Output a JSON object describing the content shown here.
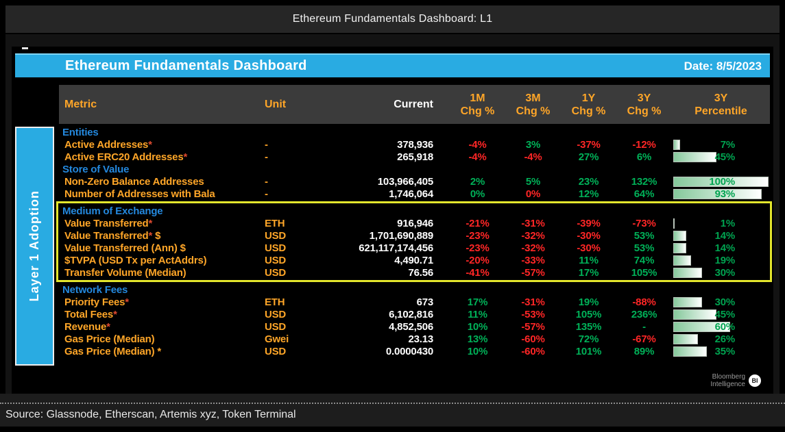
{
  "window_title": "Ethereum Fundamentals Dashboard: L1",
  "header": {
    "title": "Ethereum Fundamentals Dashboard",
    "date": "Date: 8/5/2023"
  },
  "sidebar": {
    "label": "Layer 1 Adoption"
  },
  "logo": {
    "line1": "Bloomberg",
    "line2": "Intelligence",
    "badge": "BI"
  },
  "footer": {
    "source": "Source: Glassnode, Etherscan, Artemis xyz, Token Terminal"
  },
  "colors": {
    "accent_blue": "#29abe2",
    "label_orange": "#ffa628",
    "section_blue": "#2488dd",
    "positive_green": "#00b158",
    "negative_red": "#ff2626",
    "percentile_green": "#00a350",
    "percentile_bar_gradient": [
      "#85c89b",
      "#ffffff"
    ],
    "highlight_yellow": "#e3e62c",
    "header_row_gray": "#3b3b3b"
  },
  "chart_data": {
    "type": "table",
    "title": "Ethereum Fundamentals Dashboard",
    "columns": [
      "Metric",
      "Unit",
      "Current",
      "1M Chg %",
      "3M Chg %",
      "1Y Chg %",
      "3Y Chg %",
      "3Y Percentile"
    ],
    "headers": {
      "metric": "Metric",
      "unit": "Unit",
      "current": "Current",
      "chg": [
        {
          "l1": "1M",
          "l2": "Chg %"
        },
        {
          "l1": "3M",
          "l2": "Chg %"
        },
        {
          "l1": "1Y",
          "l2": "Chg %"
        },
        {
          "l1": "3Y",
          "l2": "Chg %"
        }
      ],
      "pct": {
        "l1": "3Y",
        "l2": "Percentile"
      }
    },
    "sections": [
      {
        "name": "Entities",
        "highlight": false,
        "rows": [
          {
            "label": "Active Addresses",
            "star": "*",
            "label2": "",
            "unit": "-",
            "current": "378,936",
            "chg": [
              {
                "v": "-4%",
                "s": "n"
              },
              {
                "v": "3%",
                "s": "p"
              },
              {
                "v": "-37%",
                "s": "n"
              },
              {
                "v": "-12%",
                "s": "n"
              }
            ],
            "pct": 7,
            "pct_label": "7%"
          },
          {
            "label": "Active ERC20 Addresses",
            "star": "*",
            "label2": "",
            "unit": "-",
            "current": "265,918",
            "chg": [
              {
                "v": "-4%",
                "s": "n"
              },
              {
                "v": "-4%",
                "s": "n"
              },
              {
                "v": "27%",
                "s": "p"
              },
              {
                "v": "6%",
                "s": "p"
              }
            ],
            "pct": 45,
            "pct_label": "45%"
          }
        ]
      },
      {
        "name": "Store of Value",
        "highlight": false,
        "rows": [
          {
            "label": "Non-Zero Balance Addresses",
            "star": "",
            "label2": "",
            "unit": "-",
            "current": "103,966,405",
            "chg": [
              {
                "v": "2%",
                "s": "p"
              },
              {
                "v": "5%",
                "s": "p"
              },
              {
                "v": "23%",
                "s": "p"
              },
              {
                "v": "132%",
                "s": "p"
              }
            ],
            "pct": 100,
            "pct_label": "100%"
          },
          {
            "label": "Number of Addresses with Bala",
            "star": "",
            "label2": "",
            "unit": "-",
            "current": "1,746,064",
            "chg": [
              {
                "v": "0%",
                "s": "p"
              },
              {
                "v": "0%",
                "s": "n"
              },
              {
                "v": "12%",
                "s": "p"
              },
              {
                "v": "64%",
                "s": "p"
              }
            ],
            "pct": 93,
            "pct_label": "93%"
          }
        ]
      },
      {
        "name": "Medium of Exchange",
        "highlight": true,
        "rows": [
          {
            "label": "Value Transferred",
            "star": "*",
            "label2": "",
            "unit": "ETH",
            "current": "916,946",
            "chg": [
              {
                "v": "-21%",
                "s": "n"
              },
              {
                "v": "-31%",
                "s": "n"
              },
              {
                "v": "-39%",
                "s": "n"
              },
              {
                "v": "-73%",
                "s": "n"
              }
            ],
            "pct": 1,
            "pct_label": "1%"
          },
          {
            "label": "Value Transferred",
            "star": "*",
            "label2": " $",
            "unit": "USD",
            "current": "1,701,690,889",
            "chg": [
              {
                "v": "-23%",
                "s": "n"
              },
              {
                "v": "-32%",
                "s": "n"
              },
              {
                "v": "-30%",
                "s": "n"
              },
              {
                "v": "53%",
                "s": "p"
              }
            ],
            "pct": 14,
            "pct_label": "14%"
          },
          {
            "label": "Value Transferred (Ann) $",
            "star": "",
            "label2": "",
            "unit": "USD",
            "current": "621,117,174,456",
            "chg": [
              {
                "v": "-23%",
                "s": "n"
              },
              {
                "v": "-32%",
                "s": "n"
              },
              {
                "v": "-30%",
                "s": "n"
              },
              {
                "v": "53%",
                "s": "p"
              }
            ],
            "pct": 14,
            "pct_label": "14%"
          },
          {
            "label": "$TVPA (USD Tx per ActAddrs)",
            "star": "",
            "label2": "",
            "unit": "USD",
            "current": "4,490.71",
            "chg": [
              {
                "v": "-20%",
                "s": "n"
              },
              {
                "v": "-33%",
                "s": "n"
              },
              {
                "v": "11%",
                "s": "p"
              },
              {
                "v": "74%",
                "s": "p"
              }
            ],
            "pct": 19,
            "pct_label": "19%"
          },
          {
            "label": "Transfer Volume (Median)",
            "star": "",
            "label2": "",
            "unit": "USD",
            "current": "76.56",
            "chg": [
              {
                "v": "-41%",
                "s": "n"
              },
              {
                "v": "-57%",
                "s": "n"
              },
              {
                "v": "17%",
                "s": "p"
              },
              {
                "v": "105%",
                "s": "p"
              }
            ],
            "pct": 30,
            "pct_label": "30%"
          }
        ]
      },
      {
        "name": "Network Fees",
        "highlight": false,
        "rows": [
          {
            "label": "Priority Fees",
            "star": "*",
            "label2": "",
            "unit": "ETH",
            "current": "673",
            "chg": [
              {
                "v": "17%",
                "s": "p"
              },
              {
                "v": "-31%",
                "s": "n"
              },
              {
                "v": "19%",
                "s": "p"
              },
              {
                "v": "-88%",
                "s": "n"
              }
            ],
            "pct": 30,
            "pct_label": "30%"
          },
          {
            "label": "Total Fees",
            "star": "*",
            "label2": "",
            "unit": "USD",
            "current": "6,102,816",
            "chg": [
              {
                "v": "11%",
                "s": "p"
              },
              {
                "v": "-53%",
                "s": "n"
              },
              {
                "v": "105%",
                "s": "p"
              },
              {
                "v": "236%",
                "s": "p"
              }
            ],
            "pct": 45,
            "pct_label": "45%"
          },
          {
            "label": "Revenue",
            "star": "*",
            "label2": "",
            "unit": "USD",
            "current": "4,852,506",
            "chg": [
              {
                "v": "10%",
                "s": "p"
              },
              {
                "v": "-57%",
                "s": "n"
              },
              {
                "v": "135%",
                "s": "p"
              },
              {
                "v": "-",
                "s": "p"
              }
            ],
            "pct": 60,
            "pct_label": "60%"
          },
          {
            "label": "Gas Price (Median)",
            "star": "",
            "label2": "",
            "unit": "Gwei",
            "current": "23.13",
            "chg": [
              {
                "v": "13%",
                "s": "p"
              },
              {
                "v": "-60%",
                "s": "n"
              },
              {
                "v": "72%",
                "s": "p"
              },
              {
                "v": "-67%",
                "s": "n"
              }
            ],
            "pct": 26,
            "pct_label": "26%"
          },
          {
            "label": "Gas Price (Median) *",
            "star": "",
            "label2": "",
            "unit": "USD",
            "current": "0.0000430",
            "chg": [
              {
                "v": "10%",
                "s": "p"
              },
              {
                "v": "-60%",
                "s": "n"
              },
              {
                "v": "101%",
                "s": "p"
              },
              {
                "v": "89%",
                "s": "p"
              }
            ],
            "pct": 35,
            "pct_label": "35%"
          }
        ]
      }
    ]
  }
}
